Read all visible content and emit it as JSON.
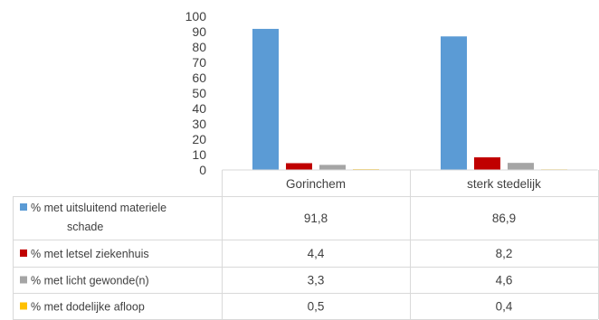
{
  "chart_data": {
    "type": "bar",
    "categories": [
      "Gorinchem",
      "sterk stedelijk"
    ],
    "yticks": [
      0,
      10,
      20,
      30,
      40,
      50,
      60,
      70,
      80,
      90,
      100
    ],
    "ylim": [
      0,
      100
    ],
    "grid": false,
    "legend": "data-table",
    "series": [
      {
        "name": "% met uitsluitend materiele schade",
        "name_lines": [
          "% met uitsluitend materiele",
          "schade"
        ],
        "color": "#5B9BD5",
        "values": [
          91.8,
          86.9
        ],
        "labels": [
          "91,8",
          "86,9"
        ]
      },
      {
        "name": "% met letsel ziekenhuis",
        "name_lines": [
          "% met letsel ziekenhuis"
        ],
        "color": "#C00000",
        "values": [
          4.4,
          8.2
        ],
        "labels": [
          "4,4",
          "8,2"
        ]
      },
      {
        "name": "% met licht gewonde(n)",
        "name_lines": [
          "% met licht gewonde(n)"
        ],
        "color": "#A5A5A5",
        "values": [
          3.3,
          4.6
        ],
        "labels": [
          "3,3",
          "4,6"
        ]
      },
      {
        "name": "% met dodelijke afloop",
        "name_lines": [
          "% met dodelijke afloop"
        ],
        "color": "#FFC000",
        "values": [
          0.5,
          0.4
        ],
        "labels": [
          "0,5",
          "0,4"
        ]
      }
    ]
  }
}
